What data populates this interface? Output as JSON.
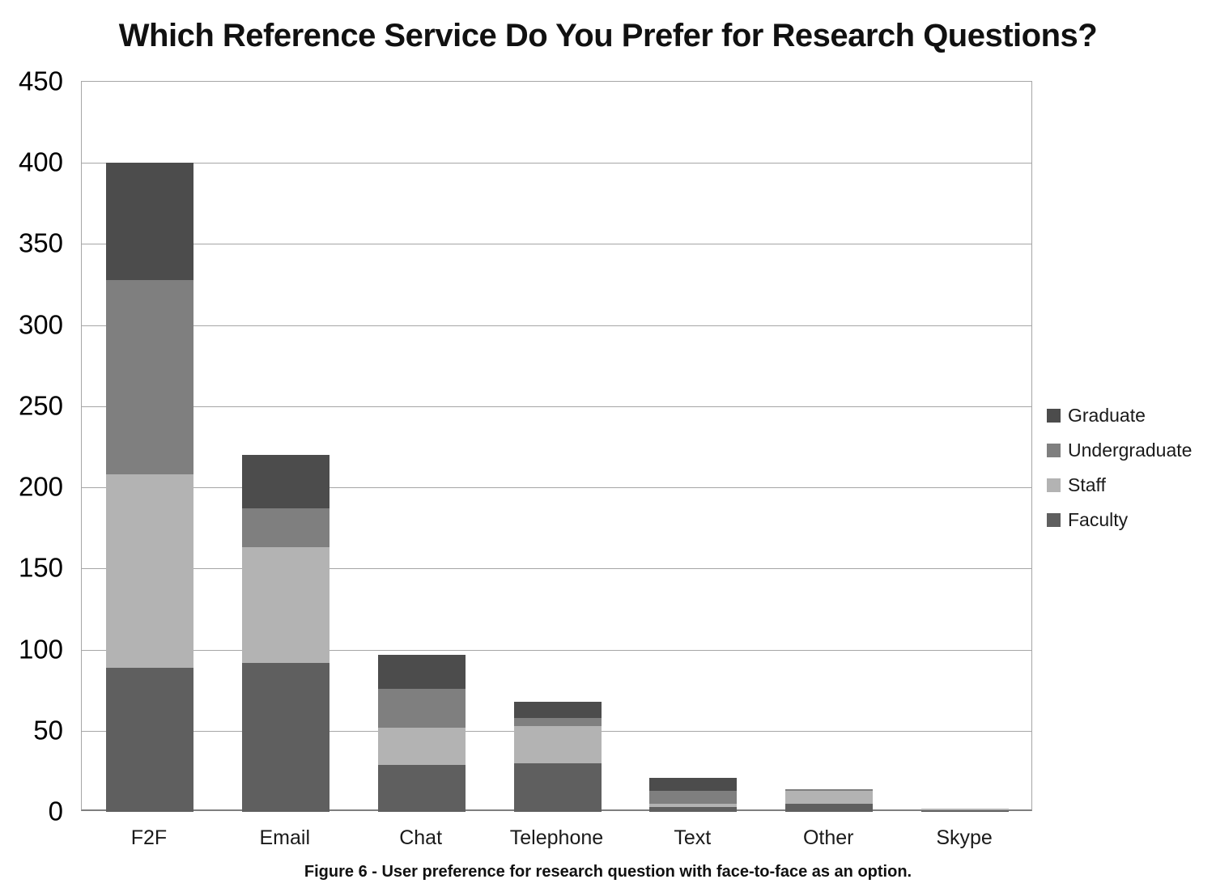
{
  "chart_data": {
    "type": "bar",
    "stacked": true,
    "title": "Which Reference Service Do You Prefer for Research Questions?",
    "caption": "Figure 6 - User preference for research question with face-to-face as an option.",
    "categories": [
      "F2F",
      "Email",
      "Chat",
      "Telephone",
      "Text",
      "Other",
      "Skype"
    ],
    "series": [
      {
        "name": "Faculty",
        "color": "#5f5f5f",
        "values": [
          89,
          92,
          29,
          30,
          3,
          5,
          1
        ]
      },
      {
        "name": "Staff",
        "color": "#b3b3b3",
        "values": [
          119,
          71,
          23,
          23,
          2,
          8,
          1
        ]
      },
      {
        "name": "Undergraduate",
        "color": "#7f7f7f",
        "values": [
          120,
          24,
          24,
          5,
          8,
          1,
          0
        ]
      },
      {
        "name": "Graduate",
        "color": "#4c4c4c",
        "values": [
          72,
          33,
          21,
          10,
          8,
          0,
          0
        ]
      }
    ],
    "totals": [
      400,
      220,
      97,
      68,
      21,
      14,
      2
    ],
    "legend": {
      "position": "right",
      "entries": [
        "Graduate",
        "Undergraduate",
        "Staff",
        "Faculty"
      ]
    },
    "y_axis": {
      "min": 0,
      "max": 450,
      "step": 50,
      "tick_labels": [
        "0",
        "50",
        "100",
        "150",
        "200",
        "250",
        "300",
        "350",
        "400",
        "450"
      ]
    },
    "x_axis": {
      "label": ""
    },
    "grid": true,
    "grid_color": "#a6a6a6",
    "background": "#ffffff"
  }
}
